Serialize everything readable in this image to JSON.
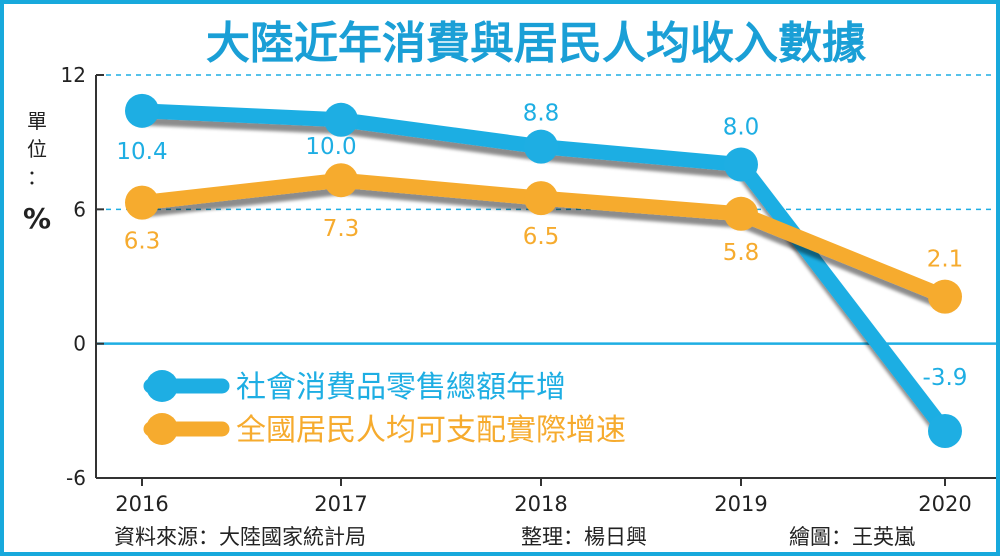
{
  "chart_data": {
    "type": "line",
    "title": "大陸近年消費與居民人均收入數據",
    "ylabel_chars": [
      "單",
      "位",
      "：",
      "%"
    ],
    "categories": [
      "2016",
      "2017",
      "2018",
      "2019",
      "2020"
    ],
    "yticks": [
      "12",
      "6",
      "0",
      "-6"
    ],
    "ylim": [
      -6,
      12
    ],
    "grid": "dashed at 6 and 12, solid at 0",
    "legend": "center-left",
    "series": [
      {
        "name": "社會消費品零售總額年增",
        "values": [
          10.4,
          10.0,
          8.8,
          8.0,
          -3.9
        ],
        "labels": [
          "10.4",
          "10.0",
          "8.8",
          "8.0",
          "-3.9"
        ],
        "color": "#1eaee3"
      },
      {
        "name": "全國居民人均可支配實際增速",
        "values": [
          6.3,
          7.3,
          6.5,
          5.8,
          2.1
        ],
        "labels": [
          "6.3",
          "7.3",
          "6.5",
          "5.8",
          "2.1"
        ],
        "color": "#f6ab2e"
      }
    ]
  },
  "footer": {
    "source": "資料來源：大陸國家統計局",
    "editor": "整理：楊日興",
    "artist": "繪圖：王英嵐"
  },
  "colors": {
    "border": "#18a9dc",
    "title": "#1a9fd6",
    "axis": "#333333"
  }
}
